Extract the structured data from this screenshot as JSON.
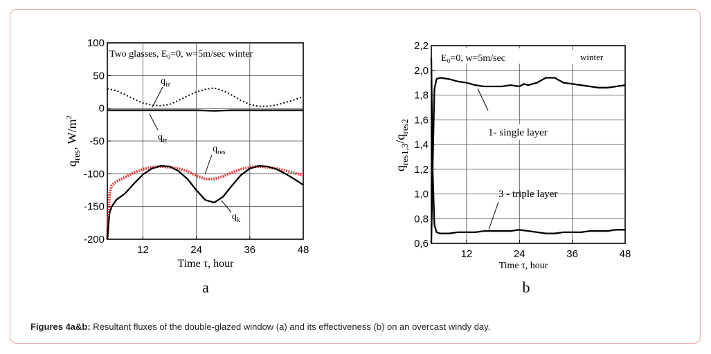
{
  "caption": {
    "bold": "Figures 4a&b:",
    "text": " Resultant fluxes of the double-glazed window (a) and its effectiveness (b) on an overcast windy day."
  },
  "chart_data": [
    {
      "type": "line",
      "panel_letter": "a",
      "title": "Two glasses, E₀=0, w=5m/sec  winter",
      "xlabel": "Time τ, hour",
      "ylabel": "q_res, W/m²",
      "xlim": [
        4,
        48
      ],
      "ylim": [
        -200,
        100
      ],
      "x_ticks": [
        12,
        24,
        36,
        48
      ],
      "y_ticks": [
        100,
        50,
        0,
        -50,
        -100,
        -150,
        -200
      ],
      "grid": true,
      "series": [
        {
          "name": "q_iz",
          "style": "dotted",
          "color": "#000000",
          "x": [
            4,
            6,
            8,
            10,
            12,
            14,
            16,
            18,
            20,
            22,
            24,
            26,
            28,
            30,
            32,
            34,
            36,
            38,
            40,
            42,
            44,
            46,
            48
          ],
          "y": [
            30,
            27,
            21,
            14,
            8,
            5,
            4,
            6,
            12,
            19,
            25,
            29,
            31,
            27,
            20,
            12,
            6,
            3,
            3,
            5,
            9,
            13,
            18
          ]
        },
        {
          "name": "q_tr",
          "style": "solid",
          "color": "#000000",
          "x": [
            4,
            8,
            12,
            16,
            20,
            24,
            28,
            32,
            36,
            40,
            44,
            48
          ],
          "y": [
            -3,
            -3,
            -3,
            -3,
            -3,
            -3,
            -4,
            -3,
            -3,
            -3,
            -3,
            -3
          ]
        },
        {
          "name": "q_res",
          "style": "dotted-red",
          "color": "#e02020",
          "x": [
            4,
            4.5,
            5,
            6,
            8,
            10,
            12,
            14,
            16,
            18,
            20,
            22,
            24,
            26,
            28,
            30,
            32,
            34,
            36,
            38,
            40,
            42,
            44,
            46,
            48
          ],
          "y": [
            -200,
            -130,
            -118,
            -112,
            -105,
            -98,
            -93,
            -90,
            -89,
            -90,
            -92,
            -96,
            -103,
            -108,
            -108,
            -104,
            -98,
            -93,
            -90,
            -89,
            -90,
            -92,
            -95,
            -99,
            -102
          ]
        },
        {
          "name": "q_k",
          "style": "solid",
          "color": "#000000",
          "x": [
            4,
            4.5,
            5,
            6,
            8,
            10,
            12,
            14,
            16,
            18,
            20,
            22,
            24,
            26,
            28,
            30,
            32,
            34,
            36,
            38,
            40,
            42,
            44,
            46,
            48
          ],
          "y": [
            -200,
            -160,
            -150,
            -140,
            -130,
            -115,
            -101,
            -92,
            -88,
            -89,
            -96,
            -108,
            -125,
            -140,
            -144,
            -135,
            -118,
            -102,
            -92,
            -88,
            -89,
            -93,
            -100,
            -108,
            -117
          ]
        }
      ],
      "labels": {
        "q_iz": {
          "base": "q",
          "sub": "iz"
        },
        "q_tr": {
          "base": "q",
          "sub": "tr"
        },
        "q_res": {
          "base": "q",
          "sub": "res"
        },
        "q_k": {
          "base": "q",
          "sub": "k"
        }
      }
    },
    {
      "type": "line",
      "panel_letter": "b",
      "title": "E₀=0, w=5m/sec",
      "title_right": "winter",
      "xlabel": "Time τ, hour",
      "ylabel": "q_res1,3/q_res2",
      "xlim": [
        4,
        48
      ],
      "ylim": [
        0.6,
        2.2
      ],
      "x_ticks": [
        12,
        24,
        36,
        48
      ],
      "y_ticks": [
        "2,2",
        "2,0",
        "1,8",
        "1,6",
        "1,4",
        "1,2",
        "1,0",
        "0,8",
        "0,6"
      ],
      "y_tick_values": [
        2.2,
        2.0,
        1.8,
        1.6,
        1.4,
        1.2,
        1.0,
        0.8,
        0.6
      ],
      "grid": true,
      "series": [
        {
          "name": "1-single layer",
          "style": "solid",
          "color": "#000000",
          "x": [
            4,
            4.3,
            4.7,
            5.2,
            6,
            8,
            10,
            12,
            14,
            16,
            18,
            20,
            22,
            24,
            25,
            26,
            28,
            30,
            32,
            34,
            36,
            38,
            40,
            42,
            44,
            46,
            48
          ],
          "y": [
            0.6,
            1.2,
            1.85,
            1.93,
            1.94,
            1.93,
            1.91,
            1.9,
            1.88,
            1.87,
            1.87,
            1.87,
            1.88,
            1.87,
            1.89,
            1.88,
            1.9,
            1.94,
            1.94,
            1.9,
            1.89,
            1.88,
            1.87,
            1.86,
            1.86,
            1.87,
            1.88
          ]
        },
        {
          "name": "3 - triple layer",
          "style": "solid",
          "color": "#000000",
          "x": [
            4,
            4.3,
            4.7,
            5.2,
            6,
            8,
            10,
            12,
            14,
            16,
            18,
            20,
            22,
            24,
            26,
            28,
            30,
            32,
            34,
            36,
            38,
            40,
            42,
            44,
            46,
            48
          ],
          "y": [
            2.1,
            1.2,
            0.75,
            0.69,
            0.68,
            0.68,
            0.69,
            0.69,
            0.69,
            0.7,
            0.7,
            0.7,
            0.7,
            0.71,
            0.7,
            0.69,
            0.68,
            0.68,
            0.69,
            0.69,
            0.69,
            0.7,
            0.7,
            0.7,
            0.71,
            0.71
          ]
        }
      ],
      "labels": {
        "single": "1- single layer",
        "triple": "3 - triple layer"
      }
    }
  ]
}
